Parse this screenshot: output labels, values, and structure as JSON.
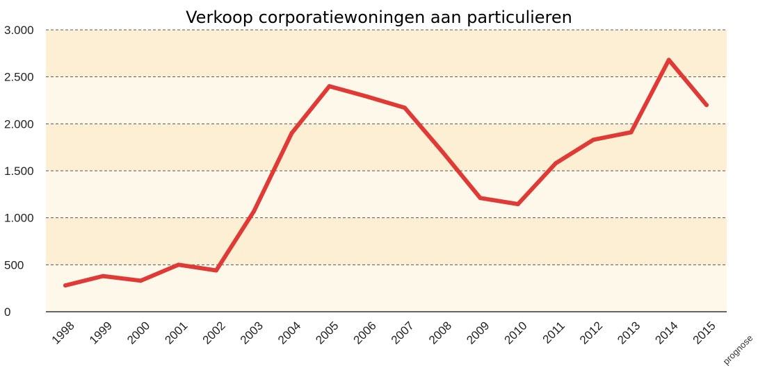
{
  "chart_data": {
    "type": "line",
    "title": "Verkoop corporatiewoningen aan particulieren",
    "xlabel": "",
    "ylabel": "",
    "categories": [
      "1998",
      "1999",
      "2000",
      "2001",
      "2002",
      "2003",
      "2004",
      "2005",
      "2006",
      "2007",
      "2008",
      "2009",
      "2010",
      "2011",
      "2012",
      "2013",
      "2014",
      "2015"
    ],
    "series": [
      {
        "values": [
          280,
          380,
          330,
          500,
          440,
          1070,
          1900,
          2400,
          2290,
          2170,
          1700,
          1210,
          1145,
          1580,
          1830,
          1910,
          2680,
          2200
        ]
      }
    ],
    "yticks": [
      {
        "value": 0,
        "label": "0"
      },
      {
        "value": 500,
        "label": "500"
      },
      {
        "value": 1000,
        "label": "1.000"
      },
      {
        "value": 1500,
        "label": "1.500"
      },
      {
        "value": 2000,
        "label": "2.000"
      },
      {
        "value": 2500,
        "label": "2.500"
      },
      {
        "value": 3000,
        "label": "3.000"
      }
    ],
    "ylim": [
      0,
      3000
    ],
    "annotation": "prognose",
    "grid": true,
    "colors": {
      "line": "#e03a36",
      "band_dark": "#fdefd3",
      "band_light": "#fef8ea",
      "grid": "#555555"
    }
  }
}
